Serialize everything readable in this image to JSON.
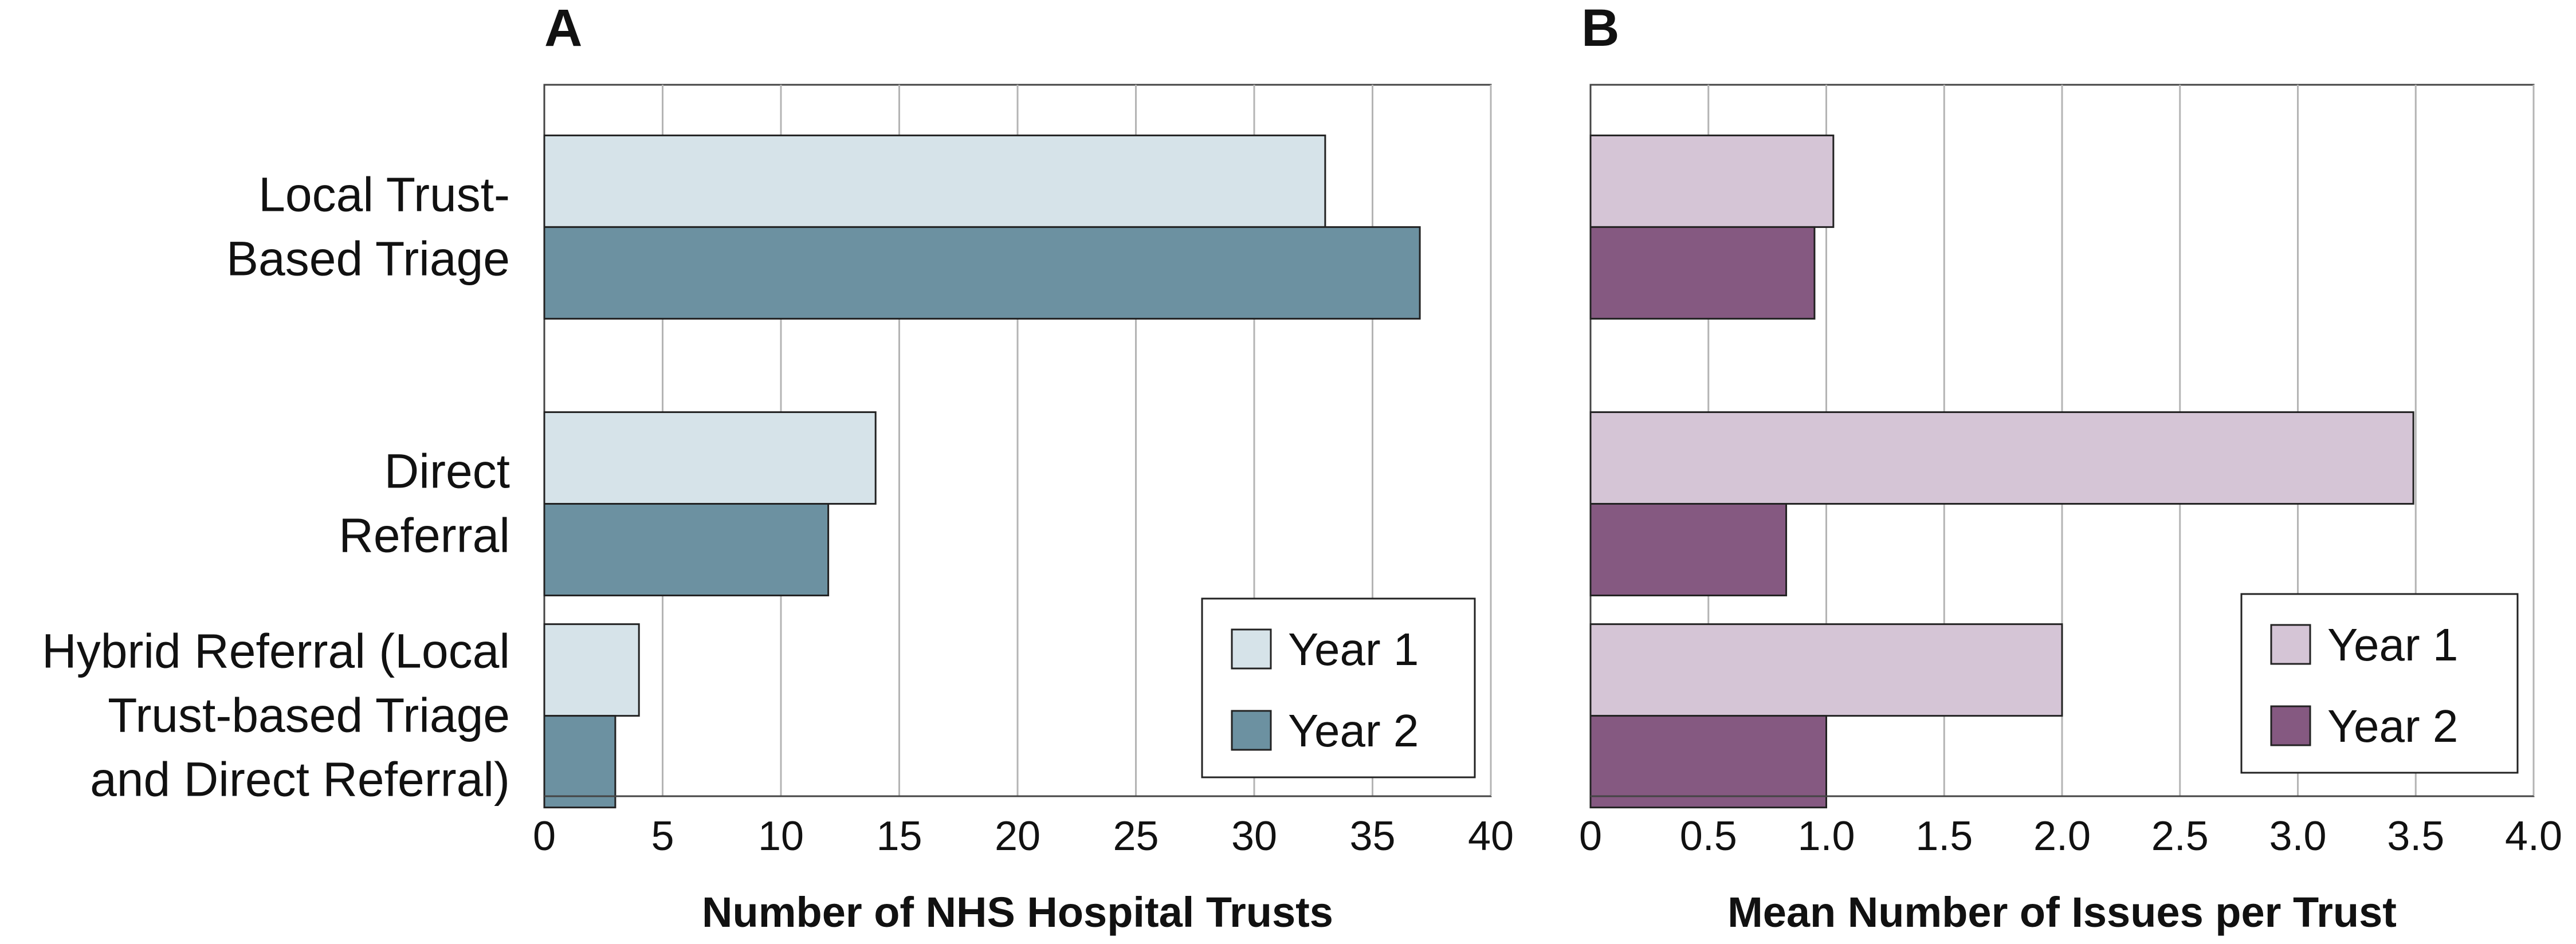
{
  "chart_data": [
    {
      "panel": "A",
      "type": "bar",
      "orientation": "horizontal",
      "categories": [
        "Local Trust-Based Triage",
        "Direct Referral",
        "Hybrid Referral (Local Trust-based Triage and Direct Referral)"
      ],
      "category_lines": [
        [
          "Local Trust-",
          "Based Triage"
        ],
        [
          "Direct",
          "Referral"
        ],
        [
          "Hybrid Referral (Local",
          "Trust-based Triage",
          "and Direct Referral)"
        ]
      ],
      "series": [
        {
          "name": "Year 1",
          "values": [
            33,
            14,
            4
          ],
          "color": "#d6e3e9"
        },
        {
          "name": "Year 2",
          "values": [
            37,
            12,
            3
          ],
          "color": "#6c91a1"
        }
      ],
      "xlabel": "Number of NHS Hospital Trusts",
      "xlim": [
        0,
        40
      ],
      "ticks": [
        0,
        5,
        10,
        15,
        20,
        25,
        30,
        35,
        40
      ],
      "tick_labels": [
        "0",
        "5",
        "10",
        "15",
        "20",
        "25",
        "30",
        "35",
        "40"
      ],
      "grid": true,
      "legend_position": "bottom-right"
    },
    {
      "panel": "B",
      "type": "bar",
      "orientation": "horizontal",
      "categories": [
        "Local Trust-Based Triage",
        "Direct Referral",
        "Hybrid Referral (Local Trust-based Triage and Direct Referral)"
      ],
      "series": [
        {
          "name": "Year 1",
          "values": [
            1.03,
            3.49,
            2.0
          ],
          "color": "#d5c5d6"
        },
        {
          "name": "Year 2",
          "values": [
            0.95,
            0.83,
            1.0
          ],
          "color": "#855981"
        }
      ],
      "xlabel": "Mean Number of Issues per Trust",
      "xlim": [
        0,
        4
      ],
      "ticks": [
        0,
        0.5,
        1,
        1.5,
        2,
        2.5,
        3,
        3.5,
        4
      ],
      "tick_labels": [
        "0",
        "0.5",
        "1.0",
        "1.5",
        "2.0",
        "2.5",
        "3.0",
        "3.5",
        "4.0"
      ],
      "grid": true,
      "legend_position": "bottom-right"
    }
  ],
  "colors": {
    "grid": "#b4b4b4",
    "frame": "#444444",
    "bar_outline": "#222222",
    "text": "#111111"
  }
}
